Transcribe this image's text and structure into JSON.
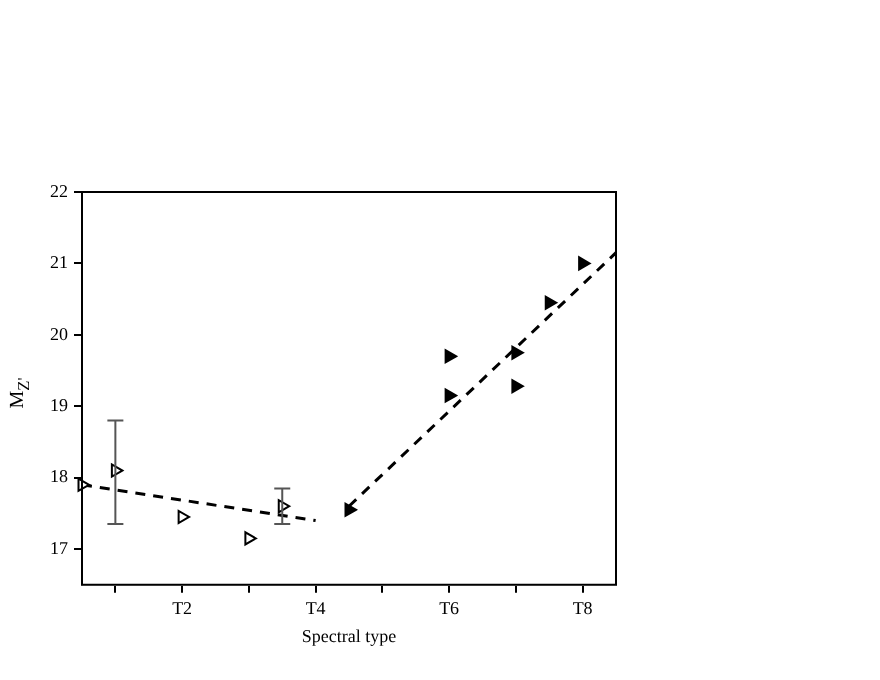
{
  "chart_data": {
    "type": "scatter",
    "xlabel": "Spectral type",
    "ylabel": "M$_{Z'}$",
    "ylim": [
      16.5,
      22
    ],
    "categories": [
      null,
      null,
      null,
      "T2",
      null,
      null,
      null,
      "T4",
      null,
      null,
      null,
      "T6",
      null,
      null,
      null,
      "T8",
      null
    ],
    "yticks": [
      17,
      18,
      19,
      20,
      21,
      22
    ],
    "grid": false,
    "legend": false,
    "marker": "triangle",
    "series": [
      {
        "color": "#000000",
        "values": [
          17.9,
          18.1,
          null,
          17.45,
          null,
          17.15,
          17.6,
          null,
          null,
          null,
          null,
          null,
          null,
          null,
          null,
          null,
          null
        ],
        "errors": [
          null,
          [
            17.35,
            18.8
          ],
          null,
          null,
          null,
          null,
          [
            17.35,
            17.85
          ],
          null,
          null,
          null,
          null,
          null,
          null,
          null,
          null,
          null,
          null
        ]
      },
      {
        "color": "#000000",
        "values": [
          null,
          null,
          null,
          null,
          null,
          null,
          null,
          null,
          17.55,
          null,
          null,
          19.7,
          null,
          19.75,
          20.45,
          21.0,
          null
        ]
      },
      {
        "color": "#000000",
        "values": [
          null,
          null,
          null,
          null,
          null,
          null,
          null,
          null,
          null,
          null,
          null,
          19.15,
          null,
          19.28,
          null,
          null,
          null
        ]
      },
      {
        "type": "line",
        "color": "#000000",
        "values": [
          17.9,
          null,
          null,
          null,
          null,
          null,
          null,
          17.4,
          null,
          null,
          null,
          null,
          null,
          null,
          null,
          null,
          null
        ],
        "marker": "none",
        "line_style": "dashed"
      },
      {
        "type": "line",
        "color": "#000000",
        "values": [
          null,
          null,
          null,
          null,
          null,
          null,
          null,
          null,
          17.6,
          null,
          null,
          null,
          null,
          null,
          null,
          null,
          21.15
        ],
        "marker": "none",
        "line_style": "dashed"
      }
    ]
  }
}
